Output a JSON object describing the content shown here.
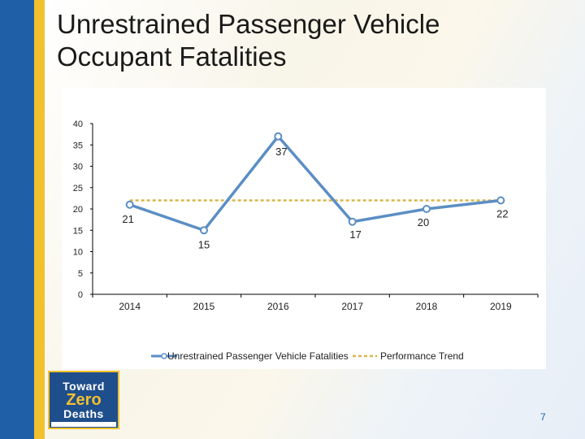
{
  "slide": {
    "title": "Unrestrained Passenger Vehicle Occupant Fatalities",
    "page_number": "7"
  },
  "logo": {
    "line1": "Toward",
    "line2": "Zero",
    "line3": "Deaths"
  },
  "colors": {
    "sidebar_blue": "#1f5fa8",
    "sidebar_yellow": "#f2c12e",
    "series_line": "#5b8ec4",
    "trend_line": "#d9b64a"
  },
  "chart_data": {
    "type": "line",
    "categories": [
      "2014",
      "2015",
      "2016",
      "2017",
      "2018",
      "2019"
    ],
    "series": [
      {
        "name": "Unrestrained Passenger Vehicle Fatalities",
        "values": [
          21,
          15,
          37,
          17,
          20,
          22
        ],
        "data_labels": [
          "21",
          "15",
          "37",
          "17",
          "20",
          "22"
        ]
      },
      {
        "name": "Performance Trend",
        "values": [
          22,
          22,
          22,
          22,
          22,
          22
        ]
      }
    ],
    "ylim": [
      0,
      40
    ],
    "yticks": [
      0,
      5,
      10,
      15,
      20,
      25,
      30,
      35,
      40
    ],
    "ytick_labels": [
      "0",
      "5",
      "10",
      "15",
      "20",
      "25",
      "30",
      "35",
      "40"
    ],
    "grid": false,
    "legend": "bottom",
    "title": "",
    "xlabel": "",
    "ylabel": ""
  }
}
